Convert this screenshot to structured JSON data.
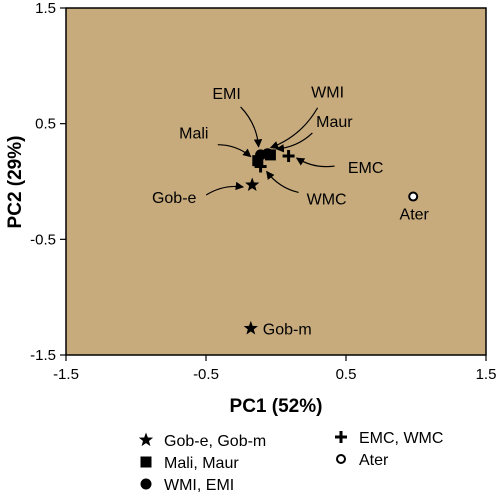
{
  "chart_data": {
    "type": "scatter",
    "title": "",
    "xlabel": "PC1 (52%)",
    "ylabel": "PC2 (29%)",
    "xlim": [
      -1.5,
      1.5
    ],
    "ylim": [
      -1.5,
      1.5
    ],
    "x_ticks": [
      -1.5,
      -0.5,
      0.5,
      1.5
    ],
    "y_ticks": [
      -1.5,
      -0.5,
      0.5,
      1.5
    ],
    "x_tick_labels": [
      "-1.5",
      "-0.5",
      "0.5",
      "1.5"
    ],
    "y_tick_labels": [
      "-1.5",
      "-0.5",
      "0.5",
      "1.5"
    ],
    "grid": false,
    "plot_background": "#c8ab7d",
    "marker_color": "#000000",
    "legend_position": "bottom",
    "points": [
      {
        "label": "Gob-e",
        "marker": "star",
        "x": -0.17,
        "y": -0.03
      },
      {
        "label": "Gob-m",
        "marker": "star",
        "x": -0.18,
        "y": -1.27
      },
      {
        "label": "Mali",
        "marker": "square",
        "x": -0.13,
        "y": 0.18
      },
      {
        "label": "Maur",
        "marker": "square",
        "x": -0.04,
        "y": 0.23
      },
      {
        "label": "WMI",
        "marker": "circle",
        "x": -0.06,
        "y": 0.24
      },
      {
        "label": "EMI",
        "marker": "circle",
        "x": -0.11,
        "y": 0.23
      },
      {
        "label": "EMC",
        "marker": "plus",
        "x": 0.09,
        "y": 0.22
      },
      {
        "label": "WMC",
        "marker": "plus",
        "x": -0.11,
        "y": 0.13
      },
      {
        "label": "Ater",
        "marker": "open-circle",
        "x": 0.98,
        "y": -0.13
      }
    ],
    "legend": [
      {
        "marker": "star",
        "text": "Gob-e, Gob-m"
      },
      {
        "marker": "square",
        "text": "Mali, Maur"
      },
      {
        "marker": "circle",
        "text": "WMI, EMI"
      },
      {
        "marker": "plus",
        "text": "EMC, WMC"
      },
      {
        "marker": "open-circle",
        "text": "Ater"
      }
    ]
  }
}
